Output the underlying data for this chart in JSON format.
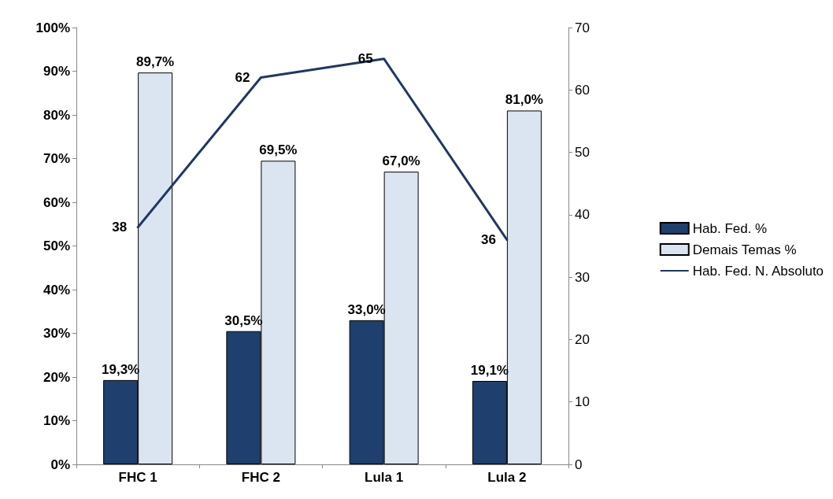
{
  "chart_data": {
    "type": "bar",
    "categories": [
      "FHC 1",
      "FHC 2",
      "Lula 1",
      "Lula 2"
    ],
    "series": [
      {
        "name": "Hab. Fed. %",
        "color": "#1f3f6e",
        "values": [
          19.3,
          30.5,
          33.0,
          19.1
        ],
        "value_labels": [
          "19,3%",
          "30,5%",
          "33,0%",
          "19,1%"
        ]
      },
      {
        "name": "Demais Temas %",
        "color": "#dbe5f1",
        "values": [
          89.7,
          69.5,
          67.0,
          81.0
        ],
        "value_labels": [
          "89,7%",
          "69,5%",
          "67,0%",
          "81,0%"
        ]
      },
      {
        "name": "Hab. Fed. N. Absoluto",
        "type": "line",
        "axis": "y2",
        "color": "#1f3864",
        "values": [
          38,
          62,
          65,
          36
        ],
        "value_labels": [
          "38",
          "62",
          "65",
          "36"
        ]
      }
    ],
    "ylim": [
      0,
      100
    ],
    "yticks": [
      {
        "value": 0,
        "label": "0%"
      },
      {
        "value": 10,
        "label": "10%"
      },
      {
        "value": 20,
        "label": "20%"
      },
      {
        "value": 30,
        "label": "30%"
      },
      {
        "value": 40,
        "label": "40%"
      },
      {
        "value": 50,
        "label": "50%"
      },
      {
        "value": 60,
        "label": "60%"
      },
      {
        "value": 70,
        "label": "70%"
      },
      {
        "value": 80,
        "label": "80%"
      },
      {
        "value": 90,
        "label": "90%"
      },
      {
        "value": 100,
        "label": "100%"
      }
    ],
    "y2lim": [
      0,
      70
    ],
    "y2ticks": [
      0,
      10,
      20,
      30,
      40,
      50,
      60,
      70
    ],
    "grid": false,
    "legend": "right",
    "marker": "none",
    "line_style": "solid"
  }
}
